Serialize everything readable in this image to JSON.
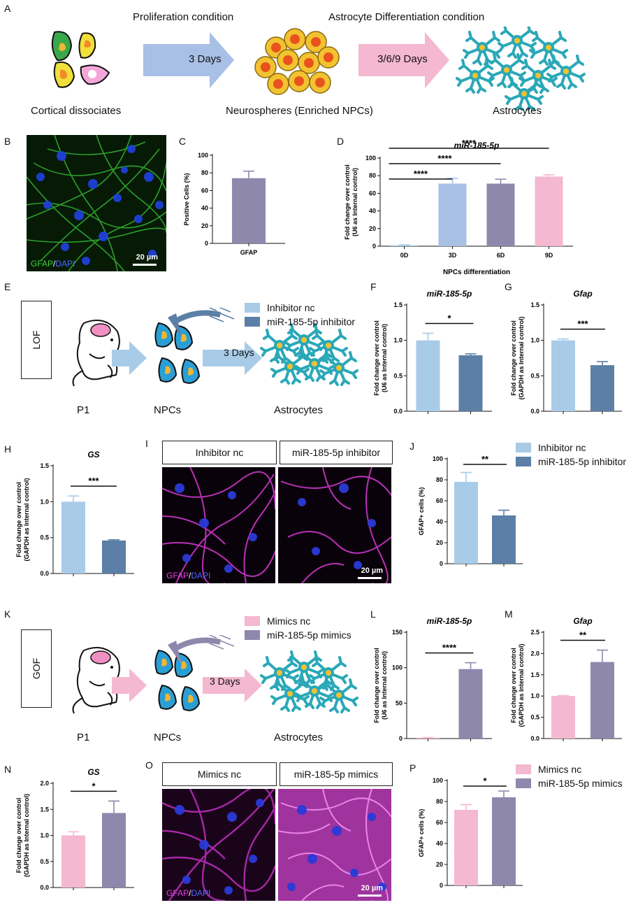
{
  "panel_a": {
    "label": "A",
    "step1": "Proliferation condition",
    "step2": "Astrocyte Differentiation condition",
    "arrow1": "3 Days",
    "arrow2": "3/6/9 Days",
    "cap1": "Cortical dissociates",
    "cap2": "Neurospheres (Enriched NPCs)",
    "cap3": "Astrocytes"
  },
  "panel_b": {
    "label": "B",
    "stain1": "GFAP",
    "slash": "/",
    "stain2": "DAPI",
    "scale": "20 µm"
  },
  "panel_e": {
    "label": "E",
    "box": "LOF",
    "p1": "P1",
    "npcs": "NPCs",
    "astro": "Astrocytes",
    "days": "3 Days",
    "legend": [
      {
        "name": "Inhibitor nc",
        "color": "#a8cbe8"
      },
      {
        "name": "miR-185-5p inhibitor",
        "color": "#5b7fa6"
      }
    ]
  },
  "panel_i": {
    "label": "I",
    "left": "Inhibitor nc",
    "right": "miR-185-5p inhibitor",
    "stain1": "GFAP",
    "slash": "/",
    "stain2": "DAPI",
    "scale": "20 µm"
  },
  "panel_j_legend": [
    {
      "name": "Inhibitor nc",
      "color": "#a8cbe8"
    },
    {
      "name": "miR-185-5p inhibitor",
      "color": "#5b7fa6"
    }
  ],
  "panel_k": {
    "label": "K",
    "box": "GOF",
    "p1": "P1",
    "npcs": "NPCs",
    "astro": "Astrocytes",
    "days": "3 Days",
    "legend": [
      {
        "name": "Mimics nc",
        "color": "#f4b8d0"
      },
      {
        "name": "miR-185-5p mimics",
        "color": "#8e88ad"
      }
    ]
  },
  "panel_o": {
    "label": "O",
    "left": "Mimics nc",
    "right": "miR-185-5p mimics",
    "stain1": "GFAP",
    "slash": "/",
    "stain2": "DAPI",
    "scale": "20 µm"
  },
  "panel_p_legend": [
    {
      "name": "Mimics nc",
      "color": "#f4b8d0"
    },
    {
      "name": "miR-185-5p mimics",
      "color": "#8e88ad"
    }
  ],
  "chart_data": [
    {
      "id": "C",
      "type": "bar",
      "title": "",
      "ylabel": "Positive Cells (%)",
      "xlabel": "",
      "ylim": [
        0,
        100
      ],
      "yticks": [
        0,
        20,
        40,
        60,
        80,
        100
      ],
      "categories": [
        "GFAP"
      ],
      "values": [
        74
      ],
      "errors": [
        8
      ],
      "colors": [
        "#8e88ad"
      ],
      "sig": []
    },
    {
      "id": "D",
      "type": "bar",
      "title": "miR-185-5p",
      "ylabel": "Fold change over control\n(U6 as Internal control)",
      "xlabel": "NPCs differentiation",
      "ylim": [
        0,
        100
      ],
      "yticks": [
        0,
        20,
        40,
        60,
        80,
        100
      ],
      "categories": [
        "0D",
        "3D",
        "6D",
        "9D"
      ],
      "values": [
        1,
        71,
        71,
        79
      ],
      "errors": [
        0.5,
        6,
        5,
        2
      ],
      "colors": [
        "#a8cbe8",
        "#a8c0e4",
        "#8e88ad",
        "#f4b8d0"
      ],
      "sig": [
        {
          "from": 0,
          "to": 3,
          "text": "****"
        },
        {
          "from": 0,
          "to": 2,
          "text": "****"
        },
        {
          "from": 0,
          "to": 1,
          "text": "****"
        }
      ]
    },
    {
      "id": "F",
      "type": "bar",
      "title": "miR-185-5p",
      "ylabel": "Fold change over control\n(U6 as Internal control)",
      "xlabel": "",
      "ylim": [
        0,
        1.5
      ],
      "yticks": [
        0.0,
        0.5,
        1.0,
        1.5
      ],
      "categories": [
        "Inhibitor nc",
        "miR-185-5p inhibitor"
      ],
      "values": [
        1.0,
        0.79
      ],
      "errors": [
        0.1,
        0.02
      ],
      "colors": [
        "#a8cbe8",
        "#5b7fa6"
      ],
      "sig": [
        {
          "from": 0,
          "to": 1,
          "text": "*"
        }
      ]
    },
    {
      "id": "G",
      "type": "bar",
      "title": "Gfap",
      "ylabel": "Fold change over control\n(GAPDH as Internal control)",
      "xlabel": "",
      "ylim": [
        0,
        1.5
      ],
      "yticks": [
        0.0,
        0.5,
        1.0,
        1.5
      ],
      "categories": [
        "Inhibitor nc",
        "miR-185-5p inhibitor"
      ],
      "values": [
        1.0,
        0.65
      ],
      "errors": [
        0.02,
        0.05
      ],
      "colors": [
        "#a8cbe8",
        "#5b7fa6"
      ],
      "sig": [
        {
          "from": 0,
          "to": 1,
          "text": "***"
        }
      ]
    },
    {
      "id": "H",
      "type": "bar",
      "title": "GS",
      "ylabel": "Fold change over control\n(GAPDH as Internal control)",
      "xlabel": "",
      "ylim": [
        0,
        1.5
      ],
      "yticks": [
        0.0,
        0.5,
        1.0,
        1.5
      ],
      "categories": [
        "Inhibitor nc",
        "miR-185-5p inhibitor"
      ],
      "values": [
        1.0,
        0.46
      ],
      "errors": [
        0.08,
        0.01
      ],
      "colors": [
        "#a8cbe8",
        "#5b7fa6"
      ],
      "sig": [
        {
          "from": 0,
          "to": 1,
          "text": "***"
        }
      ]
    },
    {
      "id": "J",
      "type": "bar",
      "title": "",
      "ylabel": "GFAP+ cells (%)",
      "xlabel": "",
      "ylim": [
        0,
        100
      ],
      "yticks": [
        0,
        20,
        40,
        60,
        80,
        100
      ],
      "categories": [
        "Inhibitor nc",
        "miR-185-5p inhibitor"
      ],
      "values": [
        78,
        46
      ],
      "errors": [
        9,
        5
      ],
      "colors": [
        "#a8cbe8",
        "#5b7fa6"
      ],
      "sig": [
        {
          "from": 0,
          "to": 1,
          "text": "**"
        }
      ]
    },
    {
      "id": "L",
      "type": "bar",
      "title": "miR-185-5p",
      "ylabel": "Fold change over control\n(U6 as Internal control)",
      "xlabel": "",
      "ylim": [
        0,
        150
      ],
      "yticks": [
        0,
        50,
        100,
        150
      ],
      "categories": [
        "Mimics nc",
        "miR-185-5p mimics"
      ],
      "values": [
        1,
        98
      ],
      "errors": [
        0.5,
        9
      ],
      "colors": [
        "#f4b8d0",
        "#8e88ad"
      ],
      "sig": [
        {
          "from": 0,
          "to": 1,
          "text": "****"
        }
      ]
    },
    {
      "id": "M",
      "type": "bar",
      "title": "Gfap",
      "ylabel": "Fold change over control\n(GAPDH as Internal control)",
      "xlabel": "",
      "ylim": [
        0,
        2.5
      ],
      "yticks": [
        0.0,
        0.5,
        1.0,
        1.5,
        2.0,
        2.5
      ],
      "categories": [
        "Mimics nc",
        "miR-185-5p mimics"
      ],
      "values": [
        1.0,
        1.8
      ],
      "errors": [
        0.01,
        0.28
      ],
      "colors": [
        "#f4b8d0",
        "#8e88ad"
      ],
      "sig": [
        {
          "from": 0,
          "to": 1,
          "text": "**"
        }
      ]
    },
    {
      "id": "N",
      "type": "bar",
      "title": "GS",
      "ylabel": "Fold change over control\n(GAPDH as Internal control)",
      "xlabel": "",
      "ylim": [
        0,
        2.0
      ],
      "yticks": [
        0.0,
        0.5,
        1.0,
        1.5,
        2.0
      ],
      "categories": [
        "Mimics nc",
        "miR-185-5p mimics"
      ],
      "values": [
        1.0,
        1.43
      ],
      "errors": [
        0.07,
        0.23
      ],
      "colors": [
        "#f4b8d0",
        "#8e88ad"
      ],
      "sig": [
        {
          "from": 0,
          "to": 1,
          "text": "*"
        }
      ]
    },
    {
      "id": "P",
      "type": "bar",
      "title": "",
      "ylabel": "GFAP+ cells (%)",
      "xlabel": "",
      "ylim": [
        0,
        100
      ],
      "yticks": [
        0,
        20,
        40,
        60,
        80,
        100
      ],
      "categories": [
        "Mimics nc",
        "miR-185-5p mimics"
      ],
      "values": [
        72,
        84
      ],
      "errors": [
        5,
        6
      ],
      "colors": [
        "#f4b8d0",
        "#8e88ad"
      ],
      "sig": [
        {
          "from": 0,
          "to": 1,
          "text": "*"
        }
      ]
    }
  ]
}
